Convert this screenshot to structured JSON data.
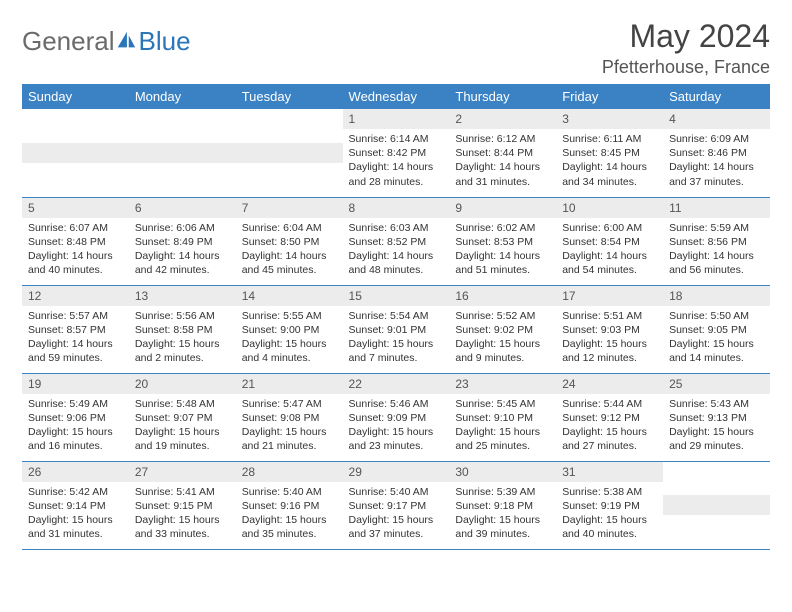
{
  "brand": {
    "part1": "General",
    "part2": "Blue"
  },
  "title": "May 2024",
  "location": "Pfetterhouse, France",
  "colors": {
    "header_bg": "#3a82c4",
    "header_text": "#ffffff",
    "daynum_bg": "#ececec",
    "border": "#3a82c4",
    "brand_gray": "#6b6b6b",
    "brand_blue": "#2a76b8"
  },
  "day_headers": [
    "Sunday",
    "Monday",
    "Tuesday",
    "Wednesday",
    "Thursday",
    "Friday",
    "Saturday"
  ],
  "weeks": [
    [
      null,
      null,
      null,
      {
        "n": "1",
        "sunrise": "6:14 AM",
        "sunset": "8:42 PM",
        "dh": "14",
        "dm": "28"
      },
      {
        "n": "2",
        "sunrise": "6:12 AM",
        "sunset": "8:44 PM",
        "dh": "14",
        "dm": "31"
      },
      {
        "n": "3",
        "sunrise": "6:11 AM",
        "sunset": "8:45 PM",
        "dh": "14",
        "dm": "34"
      },
      {
        "n": "4",
        "sunrise": "6:09 AM",
        "sunset": "8:46 PM",
        "dh": "14",
        "dm": "37"
      }
    ],
    [
      {
        "n": "5",
        "sunrise": "6:07 AM",
        "sunset": "8:48 PM",
        "dh": "14",
        "dm": "40"
      },
      {
        "n": "6",
        "sunrise": "6:06 AM",
        "sunset": "8:49 PM",
        "dh": "14",
        "dm": "42"
      },
      {
        "n": "7",
        "sunrise": "6:04 AM",
        "sunset": "8:50 PM",
        "dh": "14",
        "dm": "45"
      },
      {
        "n": "8",
        "sunrise": "6:03 AM",
        "sunset": "8:52 PM",
        "dh": "14",
        "dm": "48"
      },
      {
        "n": "9",
        "sunrise": "6:02 AM",
        "sunset": "8:53 PM",
        "dh": "14",
        "dm": "51"
      },
      {
        "n": "10",
        "sunrise": "6:00 AM",
        "sunset": "8:54 PM",
        "dh": "14",
        "dm": "54"
      },
      {
        "n": "11",
        "sunrise": "5:59 AM",
        "sunset": "8:56 PM",
        "dh": "14",
        "dm": "56"
      }
    ],
    [
      {
        "n": "12",
        "sunrise": "5:57 AM",
        "sunset": "8:57 PM",
        "dh": "14",
        "dm": "59"
      },
      {
        "n": "13",
        "sunrise": "5:56 AM",
        "sunset": "8:58 PM",
        "dh": "15",
        "dm": "2"
      },
      {
        "n": "14",
        "sunrise": "5:55 AM",
        "sunset": "9:00 PM",
        "dh": "15",
        "dm": "4"
      },
      {
        "n": "15",
        "sunrise": "5:54 AM",
        "sunset": "9:01 PM",
        "dh": "15",
        "dm": "7"
      },
      {
        "n": "16",
        "sunrise": "5:52 AM",
        "sunset": "9:02 PM",
        "dh": "15",
        "dm": "9"
      },
      {
        "n": "17",
        "sunrise": "5:51 AM",
        "sunset": "9:03 PM",
        "dh": "15",
        "dm": "12"
      },
      {
        "n": "18",
        "sunrise": "5:50 AM",
        "sunset": "9:05 PM",
        "dh": "15",
        "dm": "14"
      }
    ],
    [
      {
        "n": "19",
        "sunrise": "5:49 AM",
        "sunset": "9:06 PM",
        "dh": "15",
        "dm": "16"
      },
      {
        "n": "20",
        "sunrise": "5:48 AM",
        "sunset": "9:07 PM",
        "dh": "15",
        "dm": "19"
      },
      {
        "n": "21",
        "sunrise": "5:47 AM",
        "sunset": "9:08 PM",
        "dh": "15",
        "dm": "21"
      },
      {
        "n": "22",
        "sunrise": "5:46 AM",
        "sunset": "9:09 PM",
        "dh": "15",
        "dm": "23"
      },
      {
        "n": "23",
        "sunrise": "5:45 AM",
        "sunset": "9:10 PM",
        "dh": "15",
        "dm": "25"
      },
      {
        "n": "24",
        "sunrise": "5:44 AM",
        "sunset": "9:12 PM",
        "dh": "15",
        "dm": "27"
      },
      {
        "n": "25",
        "sunrise": "5:43 AM",
        "sunset": "9:13 PM",
        "dh": "15",
        "dm": "29"
      }
    ],
    [
      {
        "n": "26",
        "sunrise": "5:42 AM",
        "sunset": "9:14 PM",
        "dh": "15",
        "dm": "31"
      },
      {
        "n": "27",
        "sunrise": "5:41 AM",
        "sunset": "9:15 PM",
        "dh": "15",
        "dm": "33"
      },
      {
        "n": "28",
        "sunrise": "5:40 AM",
        "sunset": "9:16 PM",
        "dh": "15",
        "dm": "35"
      },
      {
        "n": "29",
        "sunrise": "5:40 AM",
        "sunset": "9:17 PM",
        "dh": "15",
        "dm": "37"
      },
      {
        "n": "30",
        "sunrise": "5:39 AM",
        "sunset": "9:18 PM",
        "dh": "15",
        "dm": "39"
      },
      {
        "n": "31",
        "sunrise": "5:38 AM",
        "sunset": "9:19 PM",
        "dh": "15",
        "dm": "40"
      },
      null
    ]
  ],
  "labels": {
    "sunrise": "Sunrise:",
    "sunset": "Sunset:",
    "daylight_prefix": "Daylight:",
    "hours_word": "hours",
    "and_word": "and",
    "minutes_word": "minutes."
  }
}
